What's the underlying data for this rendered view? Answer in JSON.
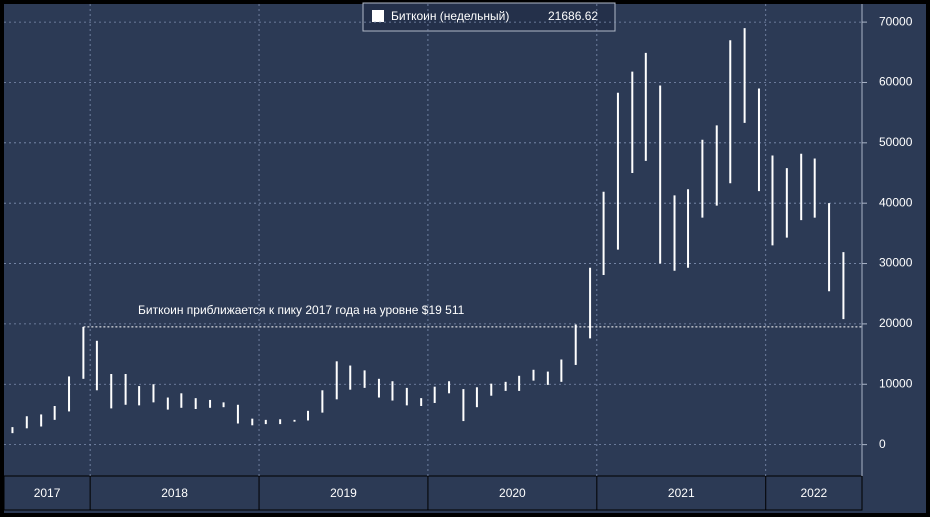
{
  "chart_data": {
    "type": "hilo",
    "series": [
      {
        "name": "Биткоин (недельный)",
        "color": "#ffffff",
        "last_value": 21686.62,
        "x": [
          2017.54,
          2017.625,
          2017.71,
          2017.79,
          2017.875,
          2017.96,
          2018.04,
          2018.125,
          2018.21,
          2018.29,
          2018.375,
          2018.46,
          2018.54,
          2018.625,
          2018.71,
          2018.79,
          2018.875,
          2018.96,
          2019.04,
          2019.125,
          2019.21,
          2019.29,
          2019.375,
          2019.46,
          2019.54,
          2019.625,
          2019.71,
          2019.79,
          2019.875,
          2019.96,
          2020.04,
          2020.125,
          2020.21,
          2020.29,
          2020.375,
          2020.46,
          2020.54,
          2020.625,
          2020.71,
          2020.79,
          2020.875,
          2020.96,
          2021.04,
          2021.125,
          2021.21,
          2021.29,
          2021.375,
          2021.46,
          2021.54,
          2021.625,
          2021.71,
          2021.79,
          2021.875,
          2021.96,
          2022.04,
          2022.125,
          2022.21,
          2022.29,
          2022.375,
          2022.46
        ],
        "high": [
          2900,
          4700,
          5000,
          6400,
          11300,
          19500,
          17200,
          11700,
          11700,
          9700,
          10000,
          7800,
          8500,
          7700,
          7400,
          7000,
          6600,
          4300,
          4100,
          4200,
          4100,
          5600,
          9000,
          13800,
          13100,
          12300,
          10900,
          10500,
          9400,
          7700,
          9600,
          10500,
          9200,
          9500,
          10100,
          10400,
          11400,
          12400,
          12100,
          14100,
          19900,
          29300,
          41900,
          58300,
          61800,
          64900,
          59500,
          41300,
          42300,
          50500,
          52900,
          67000,
          69000,
          59000,
          47900,
          45800,
          48200,
          47400,
          40000,
          31900
        ],
        "low": [
          1900,
          2700,
          3000,
          4100,
          5500,
          10900,
          9000,
          6000,
          6600,
          6500,
          7000,
          5800,
          6100,
          5900,
          6100,
          6200,
          3500,
          3200,
          3400,
          3400,
          3800,
          4000,
          5300,
          7500,
          9100,
          9400,
          7800,
          7300,
          6500,
          6400,
          6900,
          8500,
          3900,
          6200,
          8100,
          8900,
          8900,
          10600,
          9900,
          10400,
          13200,
          17600,
          28100,
          32300,
          45000,
          47000,
          30000,
          28800,
          29300,
          37600,
          39600,
          43300,
          53300,
          42000,
          33000,
          34300,
          37200,
          37600,
          25400,
          20800
        ]
      }
    ],
    "annotation": "Биткоин приближается к пику 2017 года на уровне $19 511",
    "reference_value": 19511,
    "xlim": [
      2017.49,
      2022.57
    ],
    "xticks": [
      2018,
      2019,
      2020,
      2021,
      2022
    ],
    "year_labels": [
      "2017",
      "2018",
      "2019",
      "2020",
      "2021",
      "2022"
    ],
    "ylim": [
      -5200,
      73000
    ],
    "yticks": [
      0,
      10000,
      20000,
      30000,
      40000,
      50000,
      60000,
      70000
    ],
    "grid": true
  }
}
